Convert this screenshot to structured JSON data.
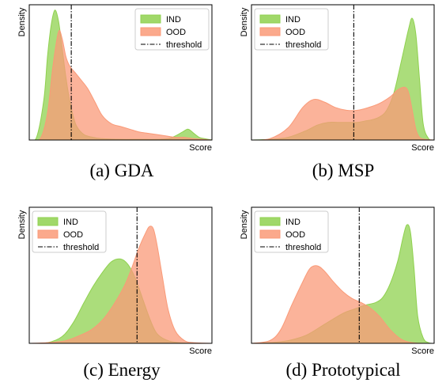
{
  "figure": {
    "ind_color": "#8fd14f",
    "ood_color": "#fa9a78",
    "overlap_color": "#c89a4a",
    "threshold_color": "#000000",
    "captions": [
      "(a) GDA",
      "(b) MSP",
      "(c) Energy",
      "(d) Prototypical"
    ]
  },
  "chart_data": [
    {
      "type": "area",
      "panel": "(a) GDA",
      "xlabel": "Score",
      "ylabel": "Density",
      "legend": [
        "IND",
        "OOD",
        "threshold"
      ],
      "legend_position": "top-right",
      "threshold": 0.23,
      "xlim": [
        0,
        1
      ],
      "ylim": [
        0,
        1
      ],
      "grid": false,
      "series": [
        {
          "name": "IND",
          "x": [
            0.0,
            0.04,
            0.08,
            0.1,
            0.12,
            0.14,
            0.16,
            0.18,
            0.2,
            0.22,
            0.24,
            0.26,
            0.3,
            0.35,
            0.4,
            0.5,
            0.6,
            0.7,
            0.76,
            0.8,
            0.84,
            0.87,
            0.9,
            0.93,
            0.96,
            1.0
          ],
          "y": [
            0,
            0.02,
            0.3,
            0.62,
            0.85,
            0.96,
            0.88,
            0.68,
            0.47,
            0.3,
            0.18,
            0.1,
            0.04,
            0.02,
            0.01,
            0.005,
            0.005,
            0.005,
            0.01,
            0.03,
            0.06,
            0.08,
            0.05,
            0.02,
            0.01,
            0
          ]
        },
        {
          "name": "OOD",
          "x": [
            0.0,
            0.06,
            0.1,
            0.13,
            0.16,
            0.18,
            0.2,
            0.22,
            0.25,
            0.28,
            0.32,
            0.36,
            0.4,
            0.45,
            0.5,
            0.55,
            0.6,
            0.65,
            0.7,
            0.75,
            0.8,
            0.85,
            0.9,
            0.95,
            1.0
          ],
          "y": [
            0,
            0.01,
            0.2,
            0.55,
            0.8,
            0.75,
            0.62,
            0.55,
            0.5,
            0.45,
            0.38,
            0.28,
            0.18,
            0.12,
            0.1,
            0.08,
            0.06,
            0.05,
            0.04,
            0.03,
            0.02,
            0.02,
            0.01,
            0.005,
            0
          ]
        }
      ]
    },
    {
      "type": "area",
      "panel": "(b) MSP",
      "xlabel": "Score",
      "ylabel": "Density",
      "legend": [
        "IND",
        "OOD",
        "threshold"
      ],
      "legend_position": "top-left",
      "threshold": 0.56,
      "xlim": [
        0,
        1
      ],
      "ylim": [
        0,
        1
      ],
      "grid": false,
      "series": [
        {
          "name": "IND",
          "x": [
            0.0,
            0.1,
            0.2,
            0.3,
            0.36,
            0.42,
            0.48,
            0.54,
            0.58,
            0.62,
            0.66,
            0.7,
            0.74,
            0.78,
            0.82,
            0.86,
            0.88,
            0.9,
            0.92,
            0.94,
            0.97,
            1.0
          ],
          "y": [
            0,
            0.005,
            0.02,
            0.07,
            0.11,
            0.13,
            0.13,
            0.13,
            0.13,
            0.14,
            0.15,
            0.17,
            0.22,
            0.35,
            0.58,
            0.82,
            0.9,
            0.78,
            0.45,
            0.12,
            0.01,
            0
          ],
          "note": "IND peak near 0.88"
        },
        {
          "name": "OOD",
          "x": [
            0.0,
            0.1,
            0.2,
            0.28,
            0.34,
            0.4,
            0.46,
            0.52,
            0.58,
            0.64,
            0.7,
            0.76,
            0.8,
            0.84,
            0.86,
            0.88,
            0.9,
            0.92,
            0.95,
            1.0
          ],
          "y": [
            0,
            0.01,
            0.09,
            0.24,
            0.3,
            0.28,
            0.24,
            0.22,
            0.22,
            0.24,
            0.27,
            0.32,
            0.37,
            0.39,
            0.35,
            0.22,
            0.08,
            0.02,
            0.005,
            0
          ]
        }
      ]
    },
    {
      "type": "area",
      "panel": "(c) Energy",
      "xlabel": "Score",
      "ylabel": "Density",
      "legend": [
        "IND",
        "OOD",
        "threshold"
      ],
      "legend_position": "top-left",
      "threshold": 0.59,
      "xlim": [
        0,
        1
      ],
      "ylim": [
        0,
        1
      ],
      "grid": false,
      "series": [
        {
          "name": "IND",
          "x": [
            0.0,
            0.1,
            0.18,
            0.24,
            0.3,
            0.35,
            0.4,
            0.45,
            0.5,
            0.54,
            0.58,
            0.62,
            0.66,
            0.7,
            0.76,
            0.82,
            0.9,
            1.0
          ],
          "y": [
            0,
            0.005,
            0.05,
            0.15,
            0.3,
            0.42,
            0.52,
            0.6,
            0.62,
            0.58,
            0.48,
            0.33,
            0.18,
            0.07,
            0.02,
            0.005,
            0,
            0
          ]
        },
        {
          "name": "OOD",
          "x": [
            0.0,
            0.1,
            0.2,
            0.28,
            0.34,
            0.4,
            0.46,
            0.52,
            0.56,
            0.6,
            0.64,
            0.66,
            0.68,
            0.7,
            0.73,
            0.76,
            0.8,
            0.85,
            0.9,
            1.0
          ],
          "y": [
            0,
            0.005,
            0.02,
            0.06,
            0.1,
            0.17,
            0.28,
            0.42,
            0.55,
            0.7,
            0.82,
            0.86,
            0.84,
            0.72,
            0.48,
            0.25,
            0.09,
            0.02,
            0.005,
            0
          ]
        }
      ]
    },
    {
      "type": "area",
      "panel": "(d) Prototypical",
      "xlabel": "Score",
      "ylabel": "Density",
      "legend": [
        "IND",
        "OOD",
        "threshold"
      ],
      "legend_position": "top-left",
      "threshold": 0.59,
      "xlim": [
        0,
        1
      ],
      "ylim": [
        0,
        1
      ],
      "grid": false,
      "series": [
        {
          "name": "IND",
          "x": [
            0.0,
            0.1,
            0.2,
            0.3,
            0.4,
            0.5,
            0.56,
            0.62,
            0.68,
            0.72,
            0.76,
            0.8,
            0.83,
            0.85,
            0.87,
            0.89,
            0.91,
            0.94,
            0.97,
            1.0
          ],
          "y": [
            0,
            0.005,
            0.02,
            0.06,
            0.14,
            0.22,
            0.25,
            0.28,
            0.3,
            0.34,
            0.44,
            0.6,
            0.78,
            0.87,
            0.82,
            0.55,
            0.2,
            0.04,
            0.005,
            0
          ]
        },
        {
          "name": "OOD",
          "x": [
            0.0,
            0.1,
            0.16,
            0.22,
            0.28,
            0.32,
            0.36,
            0.4,
            0.45,
            0.5,
            0.55,
            0.6,
            0.65,
            0.7,
            0.76,
            0.82,
            0.88,
            0.94,
            1.0
          ],
          "y": [
            0,
            0.02,
            0.1,
            0.28,
            0.45,
            0.55,
            0.57,
            0.53,
            0.45,
            0.38,
            0.33,
            0.3,
            0.26,
            0.2,
            0.1,
            0.03,
            0.005,
            0,
            0
          ]
        }
      ]
    }
  ]
}
